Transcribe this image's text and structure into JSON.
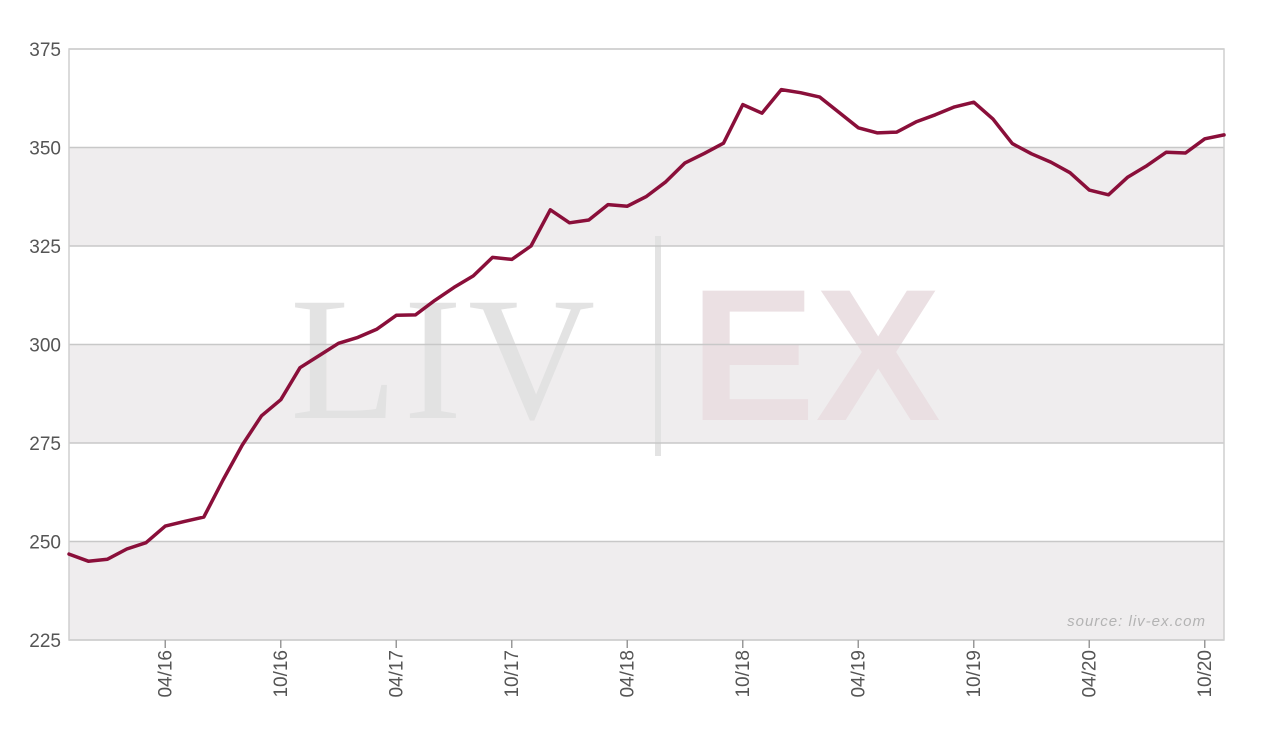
{
  "watermark": {
    "left": "LIV",
    "right": "EX"
  },
  "source_note": "source: liv-ex.com",
  "colors": {
    "line": "#8a0f3a",
    "band": "#efedee",
    "grid": "#c8c8c8",
    "frame": "#cfcfcf"
  },
  "chart_data": {
    "type": "line",
    "title": "",
    "xlabel": "",
    "ylabel": "",
    "ylim": [
      225,
      375
    ],
    "yticks": [
      225,
      250,
      275,
      300,
      325,
      350,
      375
    ],
    "x_tick_labels": [
      "04/16",
      "10/16",
      "04/17",
      "10/17",
      "04/18",
      "10/18",
      "04/19",
      "10/19",
      "04/20",
      "10/20"
    ],
    "x_tick_months": [
      "2016-04",
      "2016-10",
      "2017-04",
      "2017-10",
      "2018-04",
      "2018-10",
      "2019-04",
      "2019-10",
      "2020-04",
      "2020-10"
    ],
    "x_range": [
      "2015-11",
      "2020-11"
    ],
    "grid": true,
    "series": [
      {
        "x": [
          "2015-11",
          "2015-12",
          "2016-01",
          "2016-02",
          "2016-03",
          "2016-04",
          "2016-05",
          "2016-06",
          "2016-07",
          "2016-08",
          "2016-09",
          "2016-10",
          "2016-11",
          "2016-12",
          "2017-01",
          "2017-02",
          "2017-03",
          "2017-04",
          "2017-05",
          "2017-06",
          "2017-07",
          "2017-08",
          "2017-09",
          "2017-10",
          "2017-11",
          "2017-12",
          "2018-01",
          "2018-02",
          "2018-03",
          "2018-04",
          "2018-05",
          "2018-06",
          "2018-07",
          "2018-08",
          "2018-09",
          "2018-10",
          "2018-11",
          "2018-12",
          "2019-01",
          "2019-02",
          "2019-03",
          "2019-04",
          "2019-05",
          "2019-06",
          "2019-07",
          "2019-08",
          "2019-09",
          "2019-10",
          "2019-11",
          "2019-12",
          "2020-01",
          "2020-02",
          "2020-03",
          "2020-04",
          "2020-05",
          "2020-06",
          "2020-07",
          "2020-08",
          "2020-09",
          "2020-10",
          "2020-11"
        ],
        "values": [
          246.8,
          245.0,
          245.5,
          248.1,
          249.7,
          253.9,
          255.1,
          256.2,
          265.6,
          274.5,
          281.9,
          286.0,
          294.1,
          297.2,
          300.3,
          301.8,
          303.9,
          307.4,
          307.5,
          311.2,
          314.5,
          317.4,
          322.1,
          321.6,
          325.0,
          334.2,
          330.9,
          331.6,
          335.5,
          335.1,
          337.6,
          341.3,
          346.1,
          348.5,
          351.1,
          360.9,
          358.7,
          364.7,
          363.9,
          362.8,
          358.9,
          355.0,
          353.7,
          353.9,
          356.5,
          358.3,
          360.3,
          361.5,
          357.2,
          351.0,
          348.4,
          346.3,
          343.6,
          339.2,
          338.0,
          342.5,
          345.4,
          348.8,
          348.6,
          352.2,
          353.2
        ]
      }
    ]
  }
}
